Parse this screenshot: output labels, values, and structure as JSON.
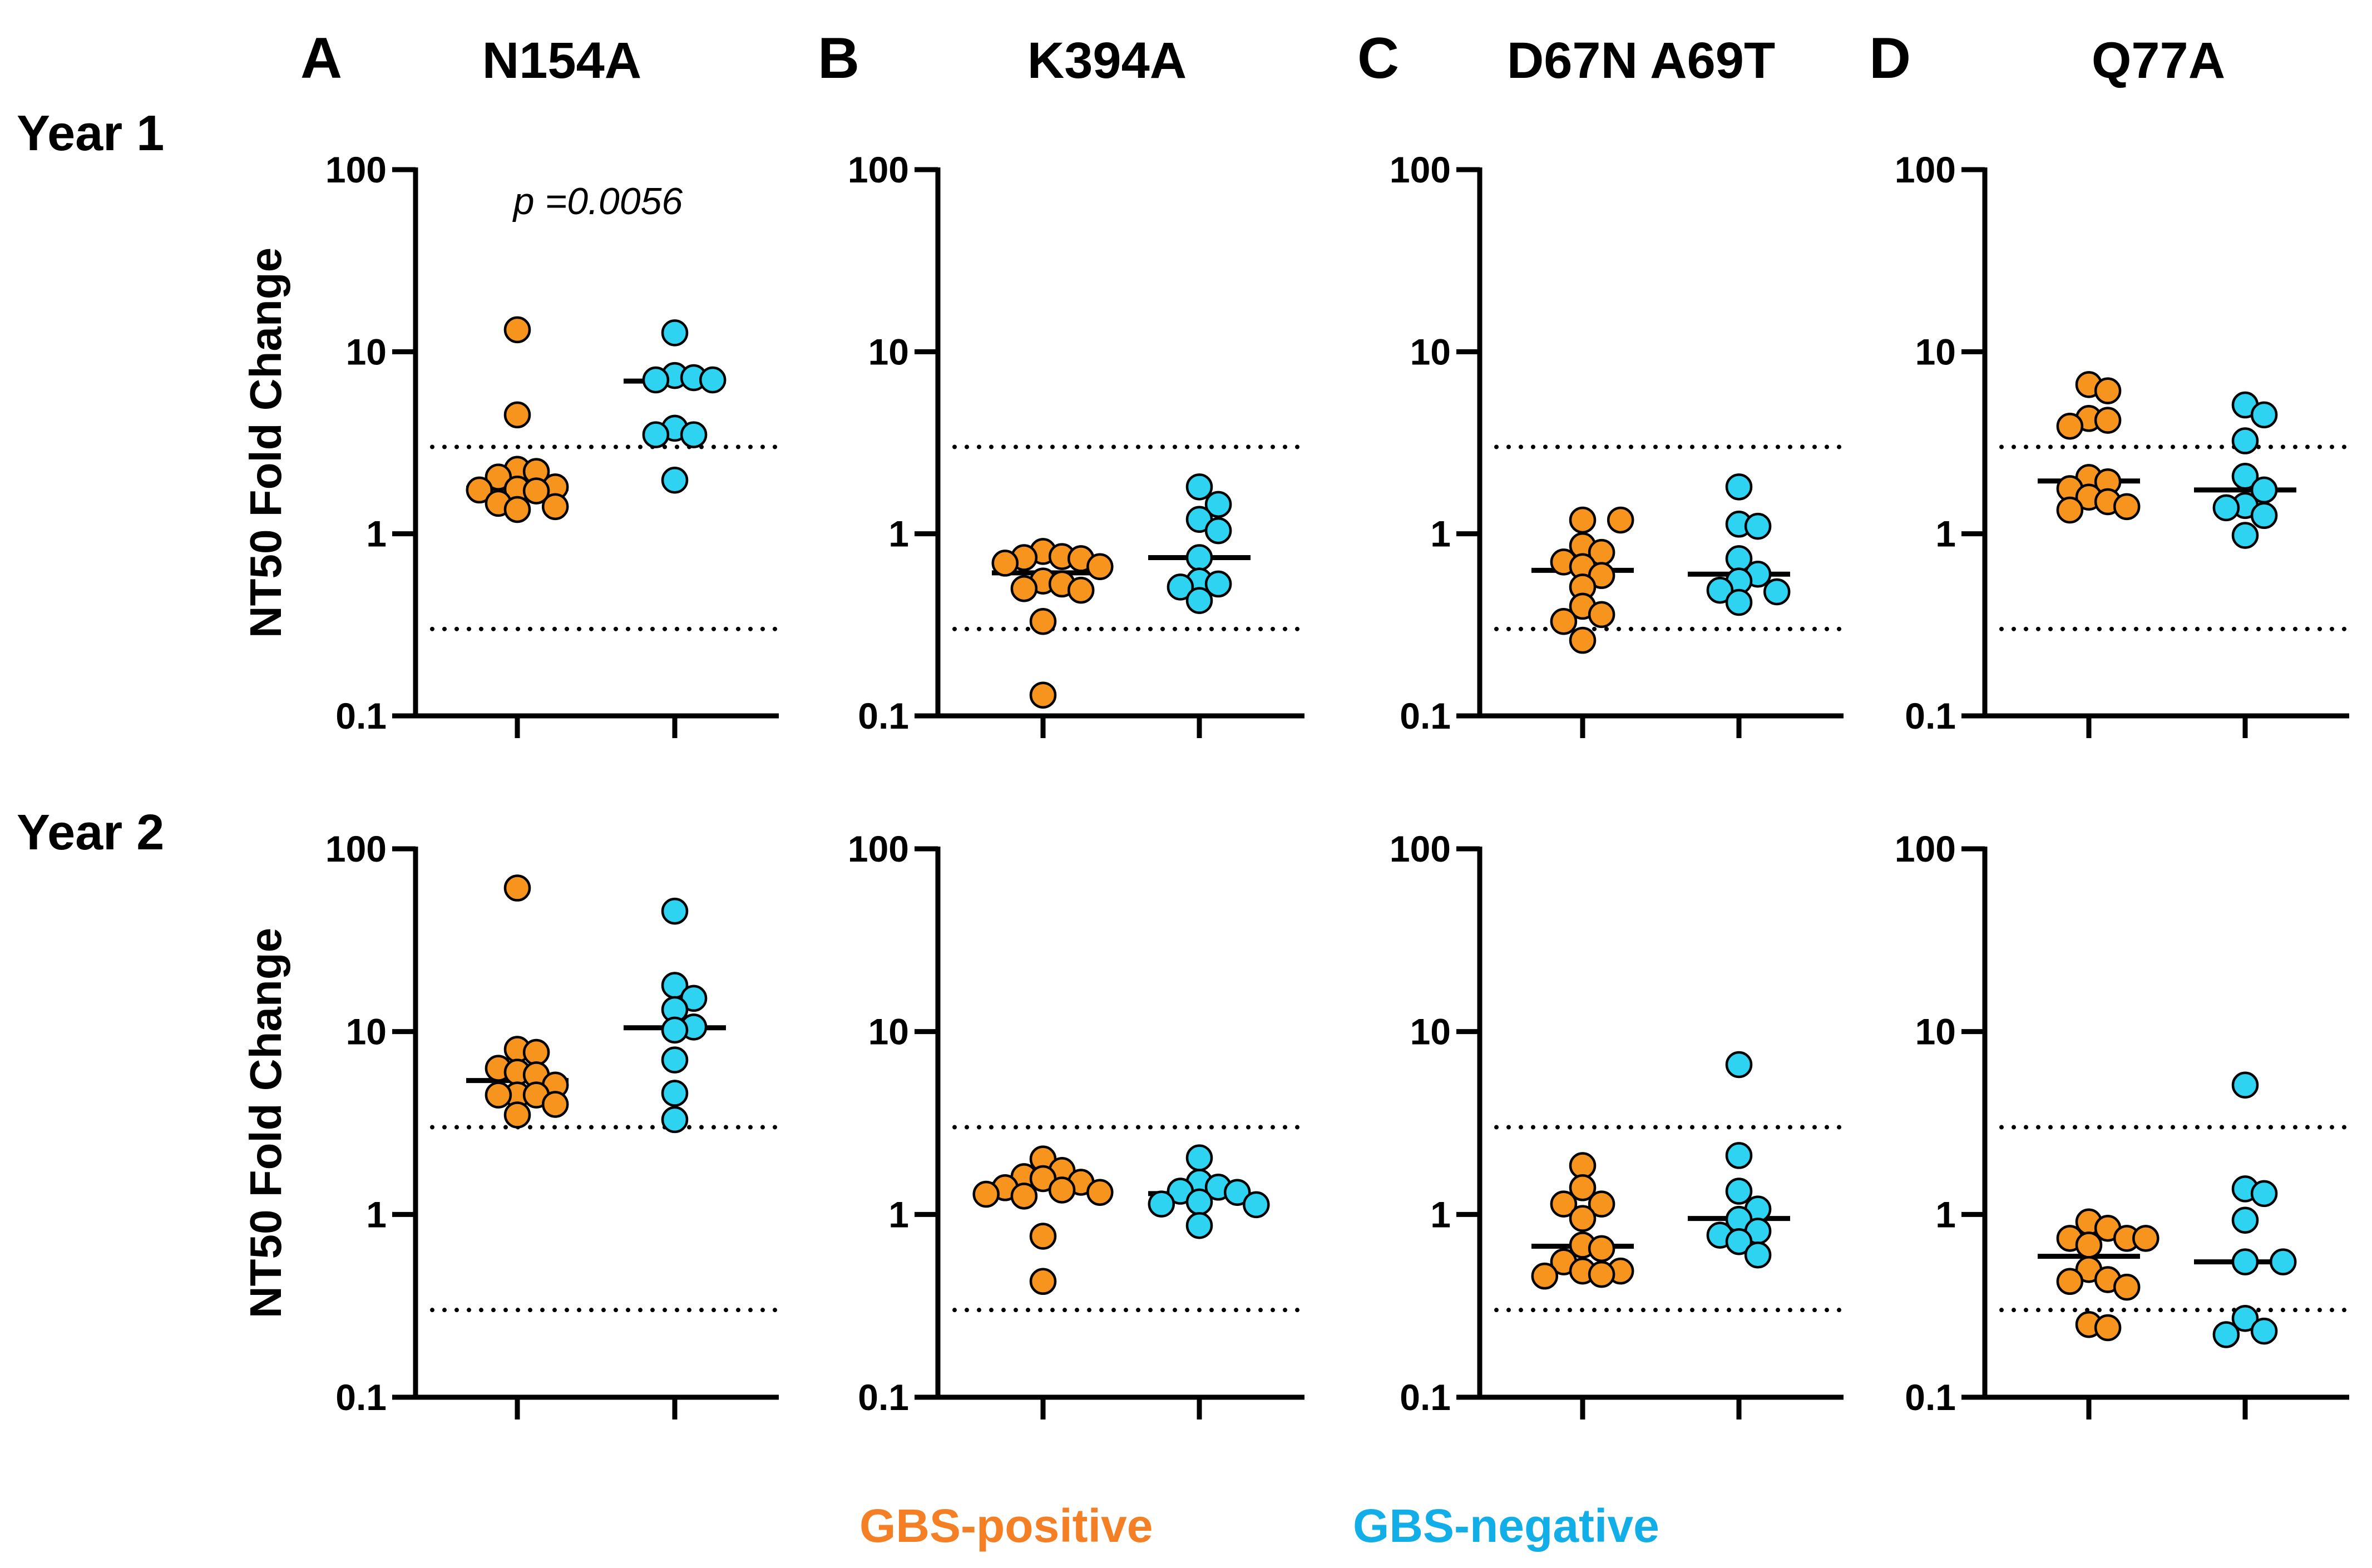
{
  "figure": {
    "row_labels": [
      "Year 1",
      "Year 2"
    ],
    "legend": [
      {
        "label": "GBS-positive",
        "color": "#F47F24"
      },
      {
        "label": "GBS-negative",
        "color": "#12AEE8"
      }
    ],
    "marker_colors": {
      "GBS-positive": "#F7941D",
      "GBS-negative": "#2ED3F2"
    }
  },
  "chart_data": [
    {
      "type": "scatter",
      "panel": "A",
      "title": "N154A",
      "row": "Year 1",
      "ylabel": "NT50 Fold Change",
      "yscale": "log",
      "ylim": [
        0.1,
        100
      ],
      "yticks": [
        "100",
        "10",
        "1",
        "0.1"
      ],
      "reference_lines": [
        3,
        0.3
      ],
      "annotation": "p =0.0056",
      "series": [
        {
          "name": "GBS-positive",
          "values": [
            13.2,
            4.5,
            2.2,
            2.26,
            2.05,
            1.81,
            1.72,
            1.76,
            1.74,
            1.47,
            1.36,
            1.41
          ],
          "median": 1.78
        },
        {
          "name": "GBS-negative",
          "values": [
            12.7,
            7.0,
            7.4,
            7.0,
            7.2,
            3.8,
            3.5,
            3.5,
            1.97
          ],
          "median": 6.9
        }
      ]
    },
    {
      "type": "scatter",
      "panel": "B",
      "title": "K394A",
      "row": "Year 1",
      "ylabel": "",
      "yscale": "log",
      "ylim": [
        0.1,
        100
      ],
      "yticks": [
        "100",
        "10",
        "1",
        "0.1"
      ],
      "reference_lines": [
        3,
        0.3
      ],
      "annotation": "",
      "series": [
        {
          "name": "GBS-positive",
          "values": [
            0.8,
            0.73,
            0.74,
            0.75,
            0.69,
            0.66,
            0.55,
            0.53,
            0.49,
            0.5,
            0.33,
            0.13
          ],
          "median": 0.61
        },
        {
          "name": "GBS-negative",
          "values": [
            1.81,
            1.45,
            1.2,
            1.04,
            0.74,
            0.55,
            0.51,
            0.53,
            0.43
          ],
          "median": 0.74
        }
      ]
    },
    {
      "type": "scatter",
      "panel": "C",
      "title": "D67N A69T",
      "row": "Year 1",
      "ylabel": "",
      "yscale": "log",
      "ylim": [
        0.1,
        100
      ],
      "yticks": [
        "100",
        "10",
        "1",
        "0.1"
      ],
      "reference_lines": [
        3,
        0.3
      ],
      "annotation": "",
      "series": [
        {
          "name": "GBS-positive",
          "values": [
            1.19,
            1.19,
            0.79,
            0.86,
            0.66,
            0.7,
            0.59,
            0.51,
            0.4,
            0.36,
            0.33,
            0.26
          ],
          "median": 0.63
        },
        {
          "name": "GBS-negative",
          "values": [
            1.81,
            1.1,
            1.13,
            0.73,
            0.6,
            0.55,
            0.48,
            0.49,
            0.42
          ],
          "median": 0.6
        }
      ]
    },
    {
      "type": "scatter",
      "panel": "D",
      "title": "Q77A",
      "row": "Year 1",
      "ylabel": "",
      "yscale": "log",
      "ylim": [
        0.1,
        100
      ],
      "yticks": [
        "100",
        "10",
        "1",
        "0.1"
      ],
      "reference_lines": [
        3,
        0.3
      ],
      "annotation": "",
      "series": [
        {
          "name": "GBS-positive",
          "values": [
            6.1,
            6.6,
            4.2,
            3.9,
            4.3,
            2.04,
            1.77,
            1.93,
            1.5,
            1.59,
            1.41,
            1.35
          ],
          "median": 1.95
        },
        {
          "name": "GBS-negative",
          "values": [
            5.1,
            4.5,
            3.24,
            2.07,
            1.43,
            1.39,
            1.74,
            1.26,
            0.98
          ],
          "median": 1.74
        }
      ]
    },
    {
      "type": "scatter",
      "panel": "A",
      "title": "N154A",
      "row": "Year 2",
      "ylabel": "NT50 Fold Change",
      "yscale": "log",
      "ylim": [
        0.1,
        100
      ],
      "yticks": [
        "100",
        "10",
        "1",
        "0.1"
      ],
      "reference_lines": [
        3,
        0.3
      ],
      "annotation": "",
      "series": [
        {
          "name": "GBS-positive",
          "values": [
            61,
            7.7,
            8.0,
            6.3,
            5.8,
            6.0,
            5.1,
            4.5,
            4.5,
            4.5,
            4.0,
            3.5
          ],
          "median": 5.4
        },
        {
          "name": "GBS-negative",
          "values": [
            45.6,
            17.9,
            13.2,
            15.2,
            10.2,
            10.6,
            7.0,
            4.6,
            3.3
          ],
          "median": 10.5
        }
      ]
    },
    {
      "type": "scatter",
      "panel": "B",
      "title": "K394A",
      "row": "Year 2",
      "ylabel": "",
      "yscale": "log",
      "ylim": [
        0.1,
        100
      ],
      "yticks": [
        "100",
        "10",
        "1",
        "0.1"
      ],
      "reference_lines": [
        3,
        0.3
      ],
      "annotation": "",
      "series": [
        {
          "name": "GBS-positive",
          "values": [
            2.01,
            1.61,
            1.74,
            1.57,
            1.5,
            1.32,
            1.4,
            1.36,
            1.29,
            1.26,
            0.76,
            0.43
          ],
          "median": 1.46
        },
        {
          "name": "GBS-negative",
          "values": [
            2.04,
            1.5,
            1.41,
            1.17,
            1.14,
            1.13,
            1.32,
            1.34,
            0.87
          ],
          "median": 1.3
        }
      ]
    },
    {
      "type": "scatter",
      "panel": "C",
      "title": "D67N A69T",
      "row": "Year 2",
      "ylabel": "",
      "yscale": "log",
      "ylim": [
        0.1,
        100
      ],
      "yticks": [
        "100",
        "10",
        "1",
        "0.1"
      ],
      "reference_lines": [
        3,
        0.3
      ],
      "annotation": "",
      "series": [
        {
          "name": "GBS-positive",
          "values": [
            1.85,
            1.4,
            1.14,
            1.14,
            0.95,
            0.68,
            0.65,
            0.55,
            0.49,
            0.49,
            0.47,
            0.46
          ],
          "median": 0.67
        },
        {
          "name": "GBS-negative",
          "values": [
            6.6,
            2.1,
            1.34,
            1.07,
            0.94,
            0.81,
            0.77,
            0.71,
            0.6
          ],
          "median": 0.95
        }
      ]
    },
    {
      "type": "scatter",
      "panel": "D",
      "title": "Q77A",
      "row": "Year 2",
      "ylabel": "",
      "yscale": "log",
      "ylim": [
        0.1,
        100
      ],
      "yticks": [
        "100",
        "10",
        "1",
        "0.1"
      ],
      "reference_lines": [
        3,
        0.3
      ],
      "annotation": "",
      "series": [
        {
          "name": "GBS-positive",
          "values": [
            0.91,
            0.84,
            0.74,
            0.74,
            0.74,
            0.68,
            0.5,
            0.43,
            0.4,
            0.44,
            0.25,
            0.24
          ],
          "median": 0.59
        },
        {
          "name": "GBS-negative",
          "values": [
            5.1,
            1.38,
            1.3,
            0.93,
            0.55,
            0.55,
            0.27,
            0.23,
            0.22
          ],
          "median": 0.55
        }
      ]
    }
  ],
  "shared_ylabel": "NT50 Fold Change"
}
